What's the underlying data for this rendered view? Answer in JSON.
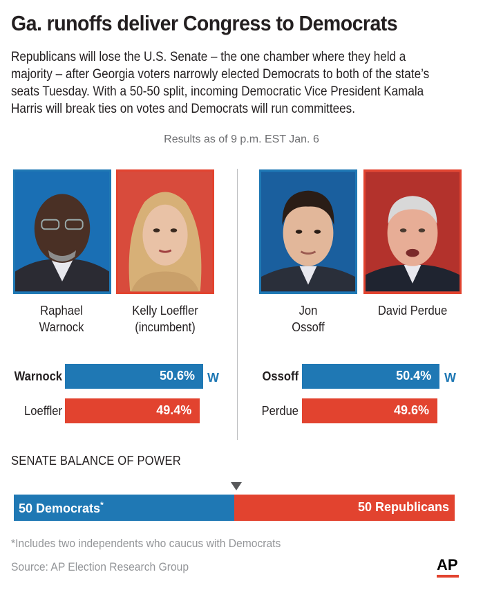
{
  "headline": "Ga. runoffs deliver Congress to Democrats",
  "dek": "Republicans will lose the U.S. Senate – the one chamber where they held a majority – after Georgia voters narrowly elected Democrats to both of the state’s seats Tuesday. With a 50-50 split, incoming Democratic Vice President Kamala Harris will break ties on votes and Democrats will run committees.",
  "as_of": "Results as of 9 p.m. EST Jan. 6",
  "candidates": [
    {
      "name_line1": "Raphael",
      "name_line2": "Warnock",
      "party": "D"
    },
    {
      "name_line1": "Kelly Loeffler",
      "name_line2": "(incumbent)",
      "party": "R"
    },
    {
      "name_line1": "Jon",
      "name_line2": "Ossoff",
      "party": "D"
    },
    {
      "name_line1": "David Perdue",
      "name_line2": "",
      "party": "R"
    }
  ],
  "colors": {
    "democrat": "#1f78b4",
    "republican": "#e2432f"
  },
  "chart_data": [
    {
      "type": "bar",
      "categories": [
        "Warnock",
        "Loeffler"
      ],
      "values": [
        50.6,
        49.4
      ],
      "labels": [
        "50.6%",
        "49.4%"
      ],
      "winner": "Warnock",
      "winner_mark": "W"
    },
    {
      "type": "bar",
      "categories": [
        "Ossoff",
        "Perdue"
      ],
      "values": [
        50.4,
        49.6
      ],
      "labels": [
        "50.4%",
        "49.6%"
      ],
      "winner": "Ossoff",
      "winner_mark": "W"
    },
    {
      "type": "bar",
      "title": "SENATE BALANCE OF POWER",
      "categories": [
        "Democrats",
        "Republicans"
      ],
      "values": [
        50,
        50
      ],
      "labels": [
        "50 Democrats",
        "50 Republicans"
      ],
      "footnote_mark": "*"
    }
  ],
  "footnote": "*Includes two independents who caucus with Democrats",
  "source": "Source: AP Election Research Group",
  "logo": "AP"
}
